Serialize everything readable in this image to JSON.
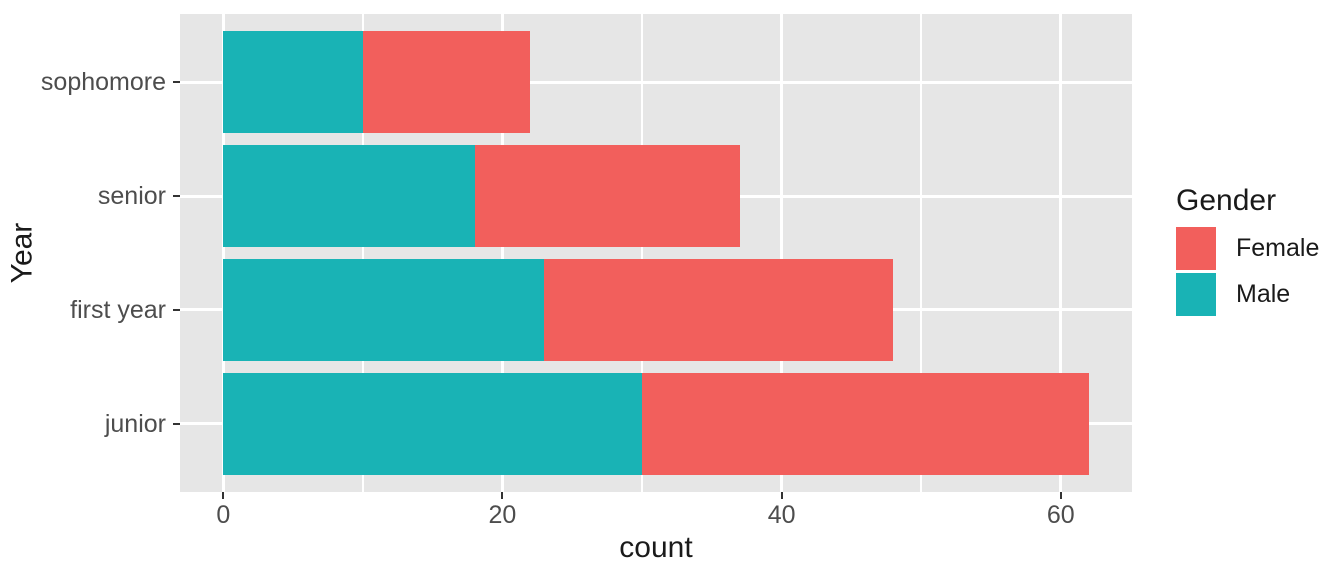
{
  "chart_data": {
    "type": "bar",
    "orientation": "horizontal",
    "stacked": true,
    "title": "",
    "xlabel": "count",
    "ylabel": "Year",
    "categories": [
      "sophomore",
      "senior",
      "first year",
      "junior"
    ],
    "series": [
      {
        "name": "Male",
        "color": "#19B3B5",
        "values": [
          10,
          18,
          23,
          30
        ]
      },
      {
        "name": "Female",
        "color": "#F25F5C",
        "values": [
          12,
          19,
          25,
          32
        ]
      }
    ],
    "totals": [
      22,
      37,
      48,
      62
    ],
    "x_ticks": [
      0,
      20,
      40,
      60
    ],
    "x_minor_ticks": [
      10,
      30,
      50
    ],
    "xlim": [
      -3.1,
      65.1
    ],
    "grid": {
      "major_color": "#FFFFFF",
      "minor_color": "#FFFFFF",
      "panel_background": "#E6E6E6"
    },
    "legend": {
      "title": "Gender",
      "position": "right",
      "entries": [
        {
          "label": "Female",
          "color": "#F25F5C"
        },
        {
          "label": "Male",
          "color": "#19B3B5"
        }
      ]
    }
  },
  "style": {
    "tick_color": "#333333",
    "axis_text_color": "#4D4D4D",
    "axis_title_color": "#1a1a1a"
  }
}
